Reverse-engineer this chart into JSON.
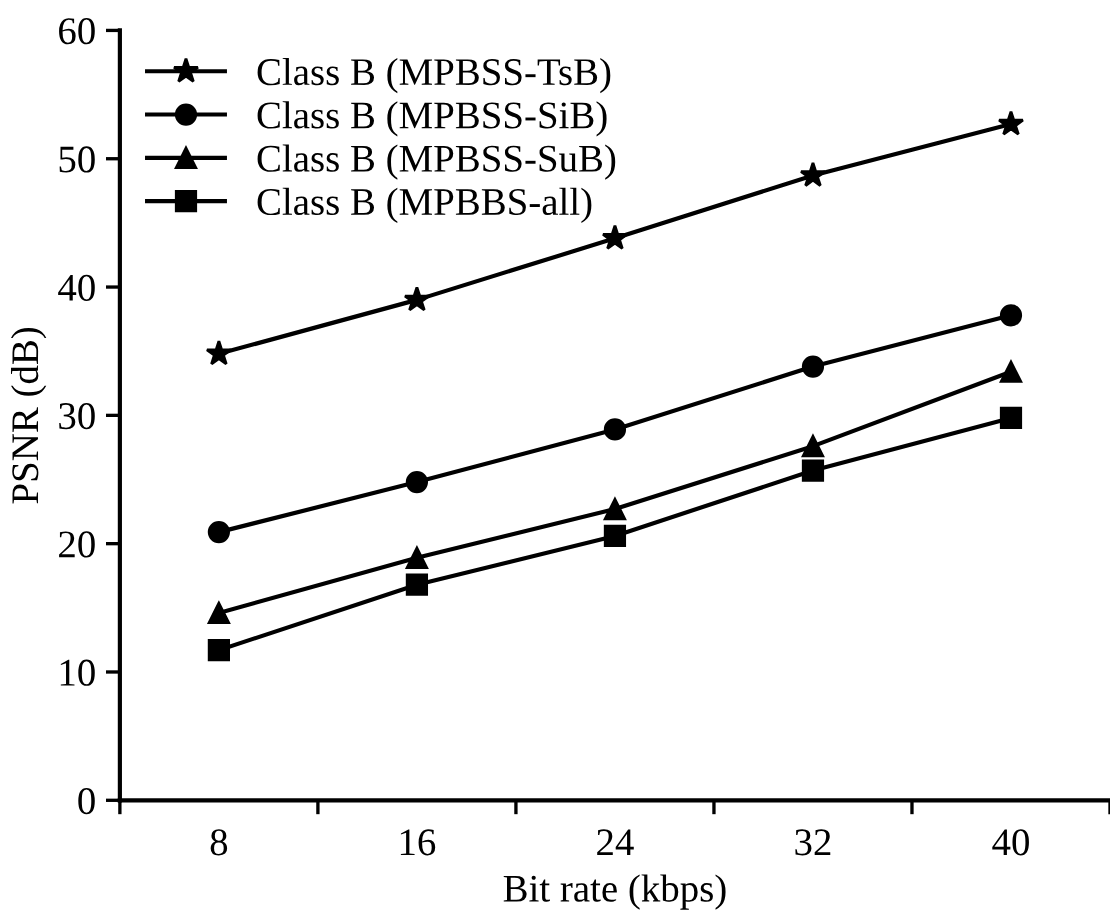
{
  "chart_data": {
    "type": "line",
    "xlabel": "Bit rate (kbps)",
    "ylabel": "PSNR (dB)",
    "categories": [
      "8",
      "16",
      "24",
      "32",
      "40"
    ],
    "ylim": [
      0,
      60
    ],
    "yticks": [
      0,
      10,
      20,
      30,
      40,
      50,
      60
    ],
    "grid": false,
    "legend": "top left",
    "line_style": "solid",
    "series": [
      {
        "name": "Class B (MPBSS-TsB)",
        "color": "#000000",
        "marker": "star",
        "values": [
          34.8,
          39.0,
          43.8,
          48.7,
          52.7
        ]
      },
      {
        "name": "Class B (MPBSS-SiB)",
        "color": "#000000",
        "marker": "circle",
        "values": [
          20.9,
          24.8,
          28.9,
          33.8,
          37.8
        ]
      },
      {
        "name": "Class B (MPBSS-SuB)",
        "color": "#000000",
        "marker": "triangle",
        "values": [
          14.6,
          18.9,
          22.7,
          27.6,
          33.4
        ]
      },
      {
        "name": "Class B (MPBBS-all)",
        "color": "#000000",
        "marker": "square",
        "values": [
          11.7,
          16.8,
          20.6,
          25.7,
          29.8
        ]
      }
    ]
  }
}
